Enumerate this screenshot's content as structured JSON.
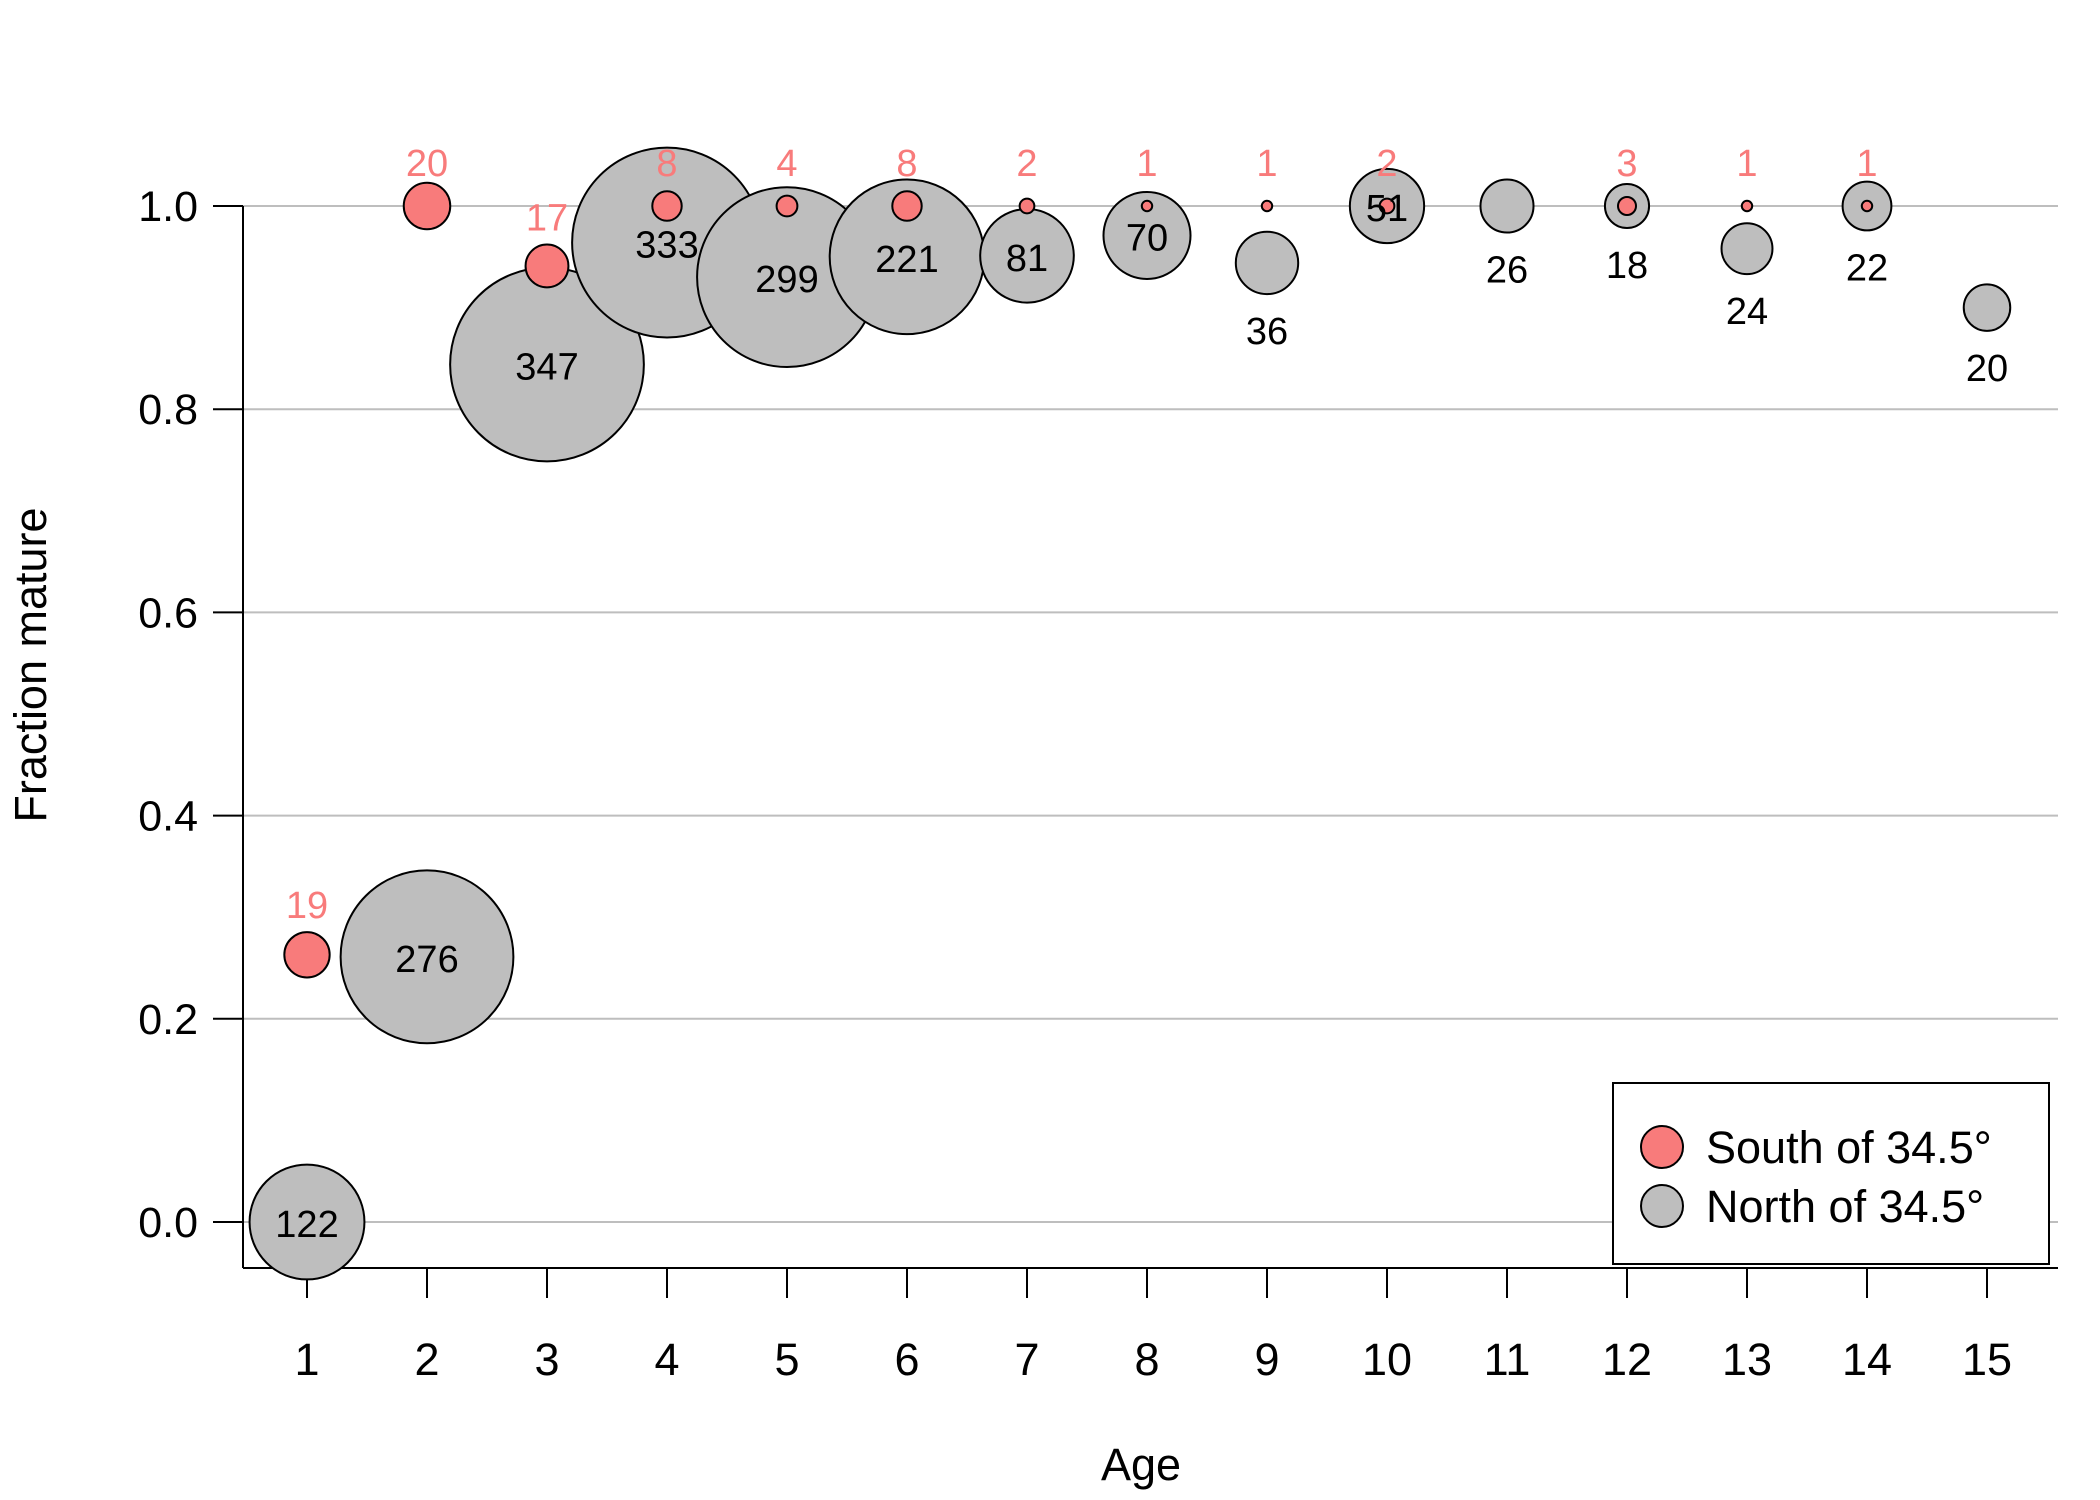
{
  "chart_data": {
    "type": "scatter",
    "xlabel": "Age",
    "ylabel": "Fraction mature",
    "ylim": [
      0,
      1
    ],
    "xlim": [
      1,
      15
    ],
    "x_ticks": [
      "1",
      "2",
      "3",
      "4",
      "5",
      "6",
      "7",
      "8",
      "9",
      "10",
      "11",
      "12",
      "13",
      "14",
      "15"
    ],
    "y_ticks": [
      "0.0",
      "0.2",
      "0.4",
      "0.6",
      "0.8",
      "1.0"
    ],
    "y_tick_values": [
      0,
      0.2,
      0.4,
      0.6,
      0.8,
      1.0
    ],
    "grid": "horizontal",
    "legend_position": "bottom-right",
    "point_size_encodes": "sample size (label value)",
    "series": [
      {
        "name": "South of 34.5°",
        "color": "#f87b7b",
        "label_color": "#f87b7b",
        "label_position": "above",
        "points": [
          {
            "x": 1,
            "y": 0.263,
            "n": 19
          },
          {
            "x": 2,
            "y": 1.0,
            "n": 20
          },
          {
            "x": 3,
            "y": 0.941,
            "n": 17
          },
          {
            "x": 4,
            "y": 1.0,
            "n": 8
          },
          {
            "x": 5,
            "y": 1.0,
            "n": 4
          },
          {
            "x": 6,
            "y": 1.0,
            "n": 8
          },
          {
            "x": 7,
            "y": 1.0,
            "n": 2
          },
          {
            "x": 8,
            "y": 1.0,
            "n": 1
          },
          {
            "x": 9,
            "y": 1.0,
            "n": 1
          },
          {
            "x": 10,
            "y": 1.0,
            "n": 2
          },
          {
            "x": 12,
            "y": 1.0,
            "n": 3
          },
          {
            "x": 13,
            "y": 1.0,
            "n": 1
          },
          {
            "x": 14,
            "y": 1.0,
            "n": 1
          }
        ]
      },
      {
        "name": "North of 34.5°",
        "color": "#bebebe",
        "label_color": "#000000",
        "label_position": "center or below",
        "points": [
          {
            "x": 1,
            "y": 0.0,
            "n": 122
          },
          {
            "x": 2,
            "y": 0.261,
            "n": 276
          },
          {
            "x": 3,
            "y": 0.844,
            "n": 347
          },
          {
            "x": 4,
            "y": 0.964,
            "n": 333
          },
          {
            "x": 5,
            "y": 0.93,
            "n": 299
          },
          {
            "x": 6,
            "y": 0.95,
            "n": 221
          },
          {
            "x": 7,
            "y": 0.951,
            "n": 81
          },
          {
            "x": 8,
            "y": 0.971,
            "n": 70
          },
          {
            "x": 9,
            "y": 0.944,
            "n": 36
          },
          {
            "x": 10,
            "y": 1.0,
            "n": 51
          },
          {
            "x": 11,
            "y": 1.0,
            "n": 26
          },
          {
            "x": 12,
            "y": 1.0,
            "n": 18
          },
          {
            "x": 13,
            "y": 0.958,
            "n": 24
          },
          {
            "x": 14,
            "y": 1.0,
            "n": 22
          },
          {
            "x": 15,
            "y": 0.9,
            "n": 20
          }
        ]
      }
    ]
  }
}
